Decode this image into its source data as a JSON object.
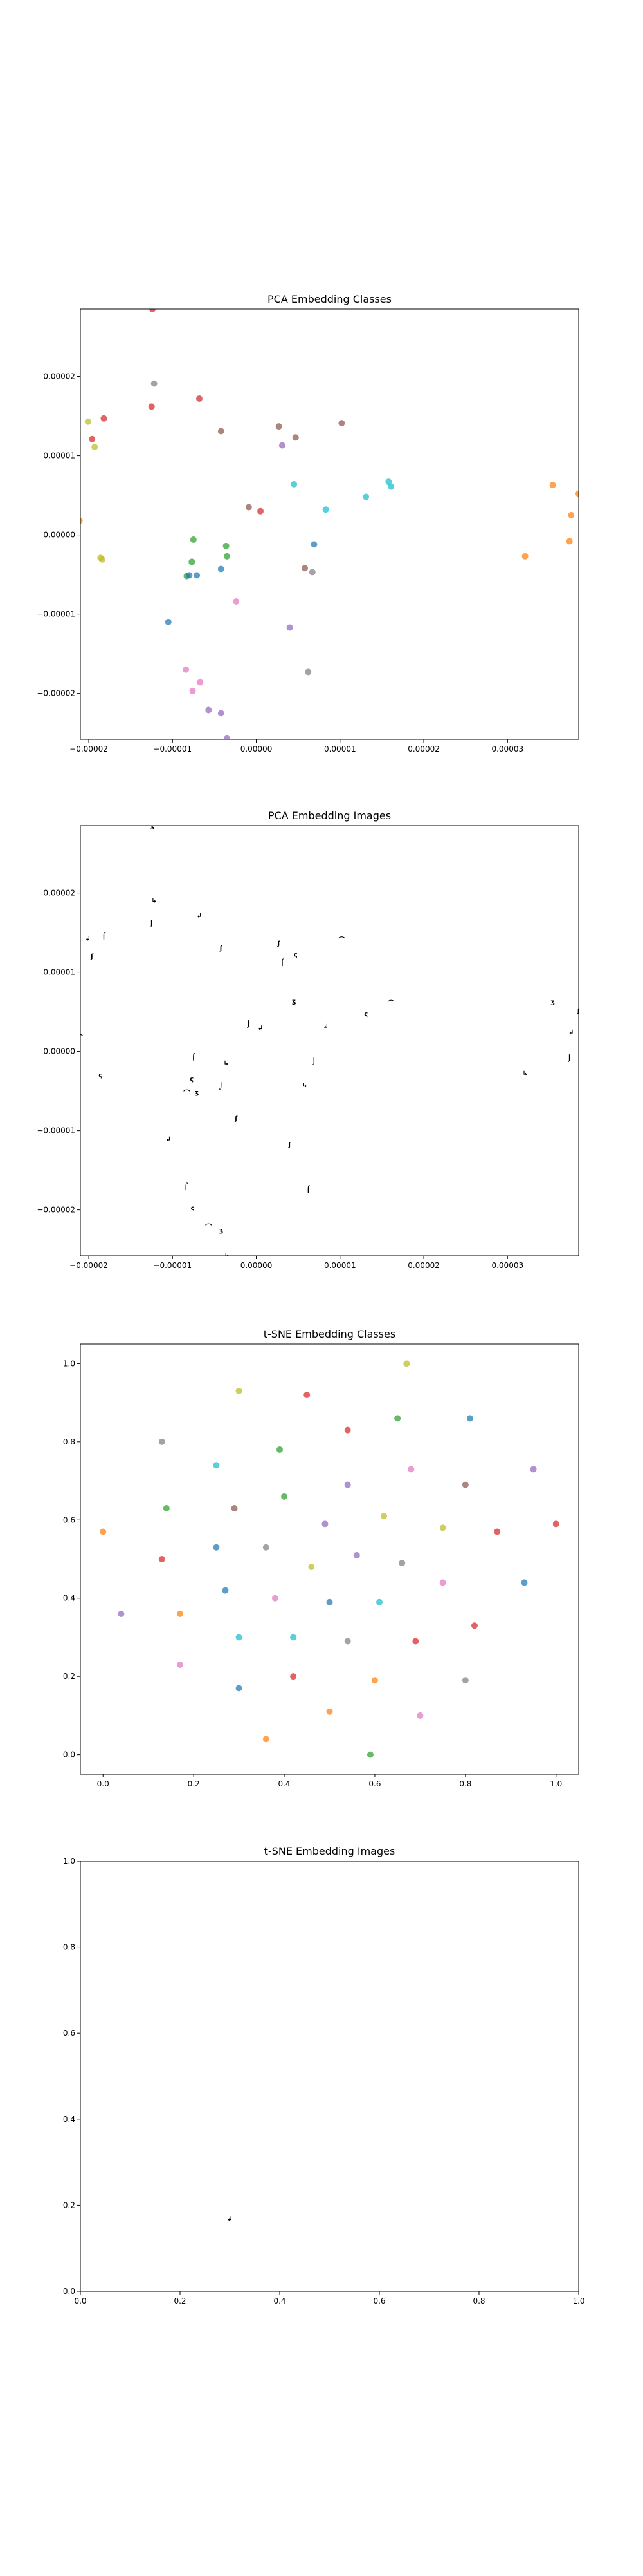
{
  "chart_data": [
    {
      "type": "scatter",
      "title": "PCA Embedding Classes",
      "xlabel": "",
      "ylabel": "",
      "xlim": [
        -2.1e-05,
        3.85e-05
      ],
      "ylim": [
        -2.58e-05,
        2.85e-05
      ],
      "xticks": [
        -2e-05,
        -1e-05,
        0.0,
        1e-05,
        2e-05,
        3e-05
      ],
      "xtick_labels": [
        "−0.00002",
        "−0.00001",
        "0.00000",
        "0.00001",
        "0.00002",
        "0.00003"
      ],
      "yticks": [
        -2e-05,
        -1e-05,
        0.0,
        1e-05,
        2e-05
      ],
      "ytick_labels": [
        "−0.00002",
        "−0.00001",
        "0.00000",
        "0.00001",
        "0.00002"
      ],
      "grid": false,
      "marker": "colored dots by class",
      "points": [
        {
          "x": -2.01e-05,
          "y": 1.43e-05,
          "color": "#bcbd22"
        },
        {
          "x": -1.96e-05,
          "y": 1.21e-05,
          "color": "#d62728"
        },
        {
          "x": -1.93e-05,
          "y": 1.11e-05,
          "color": "#bcbd22"
        },
        {
          "x": -1.82e-05,
          "y": 1.47e-05,
          "color": "#d62728"
        },
        {
          "x": -1.86e-05,
          "y": -2.9e-06,
          "color": "#bcbd22"
        },
        {
          "x": -1.84e-05,
          "y": -3.1e-06,
          "color": "#bcbd22"
        },
        {
          "x": -2.11e-05,
          "y": 1.8e-06,
          "color": "#ff7f0e"
        },
        {
          "x": -1.24e-05,
          "y": 2.85e-05,
          "color": "#d62728"
        },
        {
          "x": -1.22e-05,
          "y": 1.91e-05,
          "color": "#7f7f7f"
        },
        {
          "x": -1.25e-05,
          "y": 1.62e-05,
          "color": "#d62728"
        },
        {
          "x": -6.8e-06,
          "y": 1.72e-05,
          "color": "#d62728"
        },
        {
          "x": -4.2e-06,
          "y": 1.31e-05,
          "color": "#8c564b"
        },
        {
          "x": -7.5e-06,
          "y": -6e-07,
          "color": "#2ca02c"
        },
        {
          "x": -7.7e-06,
          "y": -3.4e-06,
          "color": "#2ca02c"
        },
        {
          "x": -8.3e-06,
          "y": -5.2e-06,
          "color": "#2ca02c"
        },
        {
          "x": -8e-06,
          "y": -5.1e-06,
          "color": "#1f77b4"
        },
        {
          "x": -7.1e-06,
          "y": -5.1e-06,
          "color": "#1f77b4"
        },
        {
          "x": -3.6e-06,
          "y": -1.4e-06,
          "color": "#2ca02c"
        },
        {
          "x": -3.5e-06,
          "y": -2.7e-06,
          "color": "#2ca02c"
        },
        {
          "x": -4.2e-06,
          "y": -4.3e-06,
          "color": "#1f77b4"
        },
        {
          "x": -1.05e-05,
          "y": -1.1e-05,
          "color": "#1f77b4"
        },
        {
          "x": -2.4e-06,
          "y": -8.4e-06,
          "color": "#e377c2"
        },
        {
          "x": -8.4e-06,
          "y": -1.7e-05,
          "color": "#e377c2"
        },
        {
          "x": -6.7e-06,
          "y": -1.86e-05,
          "color": "#e377c2"
        },
        {
          "x": -7.6e-06,
          "y": -1.97e-05,
          "color": "#e377c2"
        },
        {
          "x": -5.7e-06,
          "y": -2.21e-05,
          "color": "#9467bd"
        },
        {
          "x": -4.2e-06,
          "y": -2.25e-05,
          "color": "#9467bd"
        },
        {
          "x": -3.5e-06,
          "y": -2.57e-05,
          "color": "#9467bd"
        },
        {
          "x": -9e-07,
          "y": 3.5e-06,
          "color": "#8c564b"
        },
        {
          "x": 5e-07,
          "y": 3e-06,
          "color": "#d62728"
        },
        {
          "x": 2.7e-06,
          "y": 1.37e-05,
          "color": "#8c564b"
        },
        {
          "x": 3.1e-06,
          "y": 1.13e-05,
          "color": "#9467bd"
        },
        {
          "x": 4.7e-06,
          "y": 1.23e-05,
          "color": "#8c564b"
        },
        {
          "x": 1.02e-05,
          "y": 1.41e-05,
          "color": "#8c564b"
        },
        {
          "x": 4.5e-06,
          "y": 6.4e-06,
          "color": "#17becf"
        },
        {
          "x": 5.8e-06,
          "y": -4.2e-06,
          "color": "#8c564b"
        },
        {
          "x": 6.7e-06,
          "y": -4.7e-06,
          "color": "#7f7f7f"
        },
        {
          "x": 6.9e-06,
          "y": -1.2e-06,
          "color": "#1f77b4"
        },
        {
          "x": 8.3e-06,
          "y": 3.2e-06,
          "color": "#17becf"
        },
        {
          "x": 4e-06,
          "y": -1.17e-05,
          "color": "#9467bd"
        },
        {
          "x": 6.2e-06,
          "y": -1.73e-05,
          "color": "#7f7f7f"
        },
        {
          "x": 1.31e-05,
          "y": 4.8e-06,
          "color": "#17becf"
        },
        {
          "x": 1.58e-05,
          "y": 6.7e-06,
          "color": "#17becf"
        },
        {
          "x": 1.61e-05,
          "y": 6.1e-06,
          "color": "#17becf"
        },
        {
          "x": 3.54e-05,
          "y": 6.3e-06,
          "color": "#ff7f0e"
        },
        {
          "x": 3.21e-05,
          "y": -2.7e-06,
          "color": "#ff7f0e"
        },
        {
          "x": 3.74e-05,
          "y": -8e-07,
          "color": "#ff7f0e"
        },
        {
          "x": 3.76e-05,
          "y": 2.5e-06,
          "color": "#ff7f0e"
        },
        {
          "x": 3.85e-05,
          "y": 5.2e-06,
          "color": "#ff7f0e"
        }
      ]
    },
    {
      "type": "scatter",
      "title": "PCA Embedding Images",
      "xlabel": "",
      "ylabel": "",
      "xlim": [
        -2.1e-05,
        3.85e-05
      ],
      "ylim": [
        -2.58e-05,
        2.85e-05
      ],
      "xticks": [
        -2e-05,
        -1e-05,
        0.0,
        1e-05,
        2e-05,
        3e-05
      ],
      "xtick_labels": [
        "−0.00002",
        "−0.00001",
        "0.00000",
        "0.00001",
        "0.00002",
        "0.00003"
      ],
      "yticks": [
        -2e-05,
        -1e-05,
        0.0,
        1e-05,
        2e-05
      ],
      "ytick_labels": [
        "−0.00002",
        "−0.00001",
        "0.00000",
        "0.00001",
        "0.00002"
      ],
      "grid": false,
      "marker": "small black digit-like glyph images",
      "points": [
        {
          "x": -2.01e-05,
          "y": 1.43e-05
        },
        {
          "x": -1.96e-05,
          "y": 1.21e-05
        },
        {
          "x": -1.82e-05,
          "y": 1.47e-05
        },
        {
          "x": -1.86e-05,
          "y": -2.9e-06
        },
        {
          "x": -2.11e-05,
          "y": 1.8e-06
        },
        {
          "x": -1.24e-05,
          "y": 2.85e-05
        },
        {
          "x": -1.22e-05,
          "y": 1.91e-05
        },
        {
          "x": -1.25e-05,
          "y": 1.62e-05
        },
        {
          "x": -6.8e-06,
          "y": 1.72e-05
        },
        {
          "x": -4.2e-06,
          "y": 1.31e-05
        },
        {
          "x": -7.5e-06,
          "y": -6e-07
        },
        {
          "x": -7.7e-06,
          "y": -3.4e-06
        },
        {
          "x": -8.3e-06,
          "y": -5.2e-06
        },
        {
          "x": -7.1e-06,
          "y": -5.1e-06
        },
        {
          "x": -3.6e-06,
          "y": -1.4e-06
        },
        {
          "x": -4.2e-06,
          "y": -4.3e-06
        },
        {
          "x": -1.05e-05,
          "y": -1.1e-05
        },
        {
          "x": -2.4e-06,
          "y": -8.4e-06
        },
        {
          "x": -8.4e-06,
          "y": -1.7e-05
        },
        {
          "x": -7.6e-06,
          "y": -1.97e-05
        },
        {
          "x": -5.7e-06,
          "y": -2.21e-05
        },
        {
          "x": -4.2e-06,
          "y": -2.25e-05
        },
        {
          "x": -3.5e-06,
          "y": -2.57e-05
        },
        {
          "x": -9e-07,
          "y": 3.5e-06
        },
        {
          "x": 5e-07,
          "y": 3e-06
        },
        {
          "x": 2.7e-06,
          "y": 1.37e-05
        },
        {
          "x": 3.1e-06,
          "y": 1.13e-05
        },
        {
          "x": 4.7e-06,
          "y": 1.23e-05
        },
        {
          "x": 1.02e-05,
          "y": 1.41e-05
        },
        {
          "x": 4.5e-06,
          "y": 6.4e-06
        },
        {
          "x": 5.8e-06,
          "y": -4.2e-06
        },
        {
          "x": 6.9e-06,
          "y": -1.2e-06
        },
        {
          "x": 8.3e-06,
          "y": 3.2e-06
        },
        {
          "x": 4e-06,
          "y": -1.17e-05
        },
        {
          "x": 6.2e-06,
          "y": -1.73e-05
        },
        {
          "x": 1.31e-05,
          "y": 4.8e-06
        },
        {
          "x": 1.61e-05,
          "y": 6.1e-06
        },
        {
          "x": 3.54e-05,
          "y": 6.3e-06
        },
        {
          "x": 3.21e-05,
          "y": -2.7e-06
        },
        {
          "x": 3.74e-05,
          "y": -8e-07
        },
        {
          "x": 3.76e-05,
          "y": 2.5e-06
        },
        {
          "x": 3.85e-05,
          "y": 5.2e-06
        }
      ]
    },
    {
      "type": "scatter",
      "title": "t-SNE Embedding Classes",
      "xlabel": "",
      "ylabel": "",
      "xlim": [
        -0.05,
        1.05
      ],
      "ylim": [
        -0.05,
        1.05
      ],
      "xticks": [
        0.0,
        0.2,
        0.4,
        0.6,
        0.8,
        1.0
      ],
      "xtick_labels": [
        "0.0",
        "0.2",
        "0.4",
        "0.6",
        "0.8",
        "1.0"
      ],
      "yticks": [
        0.0,
        0.2,
        0.4,
        0.6,
        0.8,
        1.0
      ],
      "ytick_labels": [
        "0.0",
        "0.2",
        "0.4",
        "0.6",
        "0.8",
        "1.0"
      ],
      "grid": false,
      "marker": "colored dots by class",
      "points": [
        {
          "x": 0.67,
          "y": 1.0,
          "color": "#bcbd22"
        },
        {
          "x": 0.3,
          "y": 0.93,
          "color": "#bcbd22"
        },
        {
          "x": 0.45,
          "y": 0.92,
          "color": "#d62728"
        },
        {
          "x": 0.65,
          "y": 0.86,
          "color": "#2ca02c"
        },
        {
          "x": 0.81,
          "y": 0.86,
          "color": "#1f77b4"
        },
        {
          "x": 0.54,
          "y": 0.83,
          "color": "#d62728"
        },
        {
          "x": 0.13,
          "y": 0.8,
          "color": "#7f7f7f"
        },
        {
          "x": 0.39,
          "y": 0.78,
          "color": "#2ca02c"
        },
        {
          "x": 0.25,
          "y": 0.74,
          "color": "#17becf"
        },
        {
          "x": 0.68,
          "y": 0.73,
          "color": "#e377c2"
        },
        {
          "x": 0.95,
          "y": 0.73,
          "color": "#9467bd"
        },
        {
          "x": 0.54,
          "y": 0.69,
          "color": "#9467bd"
        },
        {
          "x": 0.8,
          "y": 0.69,
          "color": "#8c564b"
        },
        {
          "x": 0.4,
          "y": 0.66,
          "color": "#2ca02c"
        },
        {
          "x": 0.14,
          "y": 0.63,
          "color": "#2ca02c"
        },
        {
          "x": 0.29,
          "y": 0.63,
          "color": "#8c564b"
        },
        {
          "x": 0.62,
          "y": 0.61,
          "color": "#bcbd22"
        },
        {
          "x": 0.49,
          "y": 0.59,
          "color": "#9467bd"
        },
        {
          "x": 1.0,
          "y": 0.59,
          "color": "#d62728"
        },
        {
          "x": 0.0,
          "y": 0.57,
          "color": "#ff7f0e"
        },
        {
          "x": 0.75,
          "y": 0.58,
          "color": "#bcbd22"
        },
        {
          "x": 0.87,
          "y": 0.57,
          "color": "#d62728"
        },
        {
          "x": 0.25,
          "y": 0.53,
          "color": "#1f77b4"
        },
        {
          "x": 0.36,
          "y": 0.53,
          "color": "#7f7f7f"
        },
        {
          "x": 0.56,
          "y": 0.51,
          "color": "#9467bd"
        },
        {
          "x": 0.13,
          "y": 0.5,
          "color": "#d62728"
        },
        {
          "x": 0.66,
          "y": 0.49,
          "color": "#7f7f7f"
        },
        {
          "x": 0.46,
          "y": 0.48,
          "color": "#bcbd22"
        },
        {
          "x": 0.75,
          "y": 0.44,
          "color": "#e377c2"
        },
        {
          "x": 0.93,
          "y": 0.44,
          "color": "#1f77b4"
        },
        {
          "x": 0.27,
          "y": 0.42,
          "color": "#1f77b4"
        },
        {
          "x": 0.38,
          "y": 0.4,
          "color": "#e377c2"
        },
        {
          "x": 0.5,
          "y": 0.39,
          "color": "#1f77b4"
        },
        {
          "x": 0.61,
          "y": 0.39,
          "color": "#17becf"
        },
        {
          "x": 0.04,
          "y": 0.36,
          "color": "#9467bd"
        },
        {
          "x": 0.17,
          "y": 0.36,
          "color": "#ff7f0e"
        },
        {
          "x": 0.82,
          "y": 0.33,
          "color": "#d62728"
        },
        {
          "x": 0.3,
          "y": 0.3,
          "color": "#17becf"
        },
        {
          "x": 0.42,
          "y": 0.3,
          "color": "#17becf"
        },
        {
          "x": 0.69,
          "y": 0.29,
          "color": "#d62728"
        },
        {
          "x": 0.54,
          "y": 0.29,
          "color": "#7f7f7f"
        },
        {
          "x": 0.17,
          "y": 0.23,
          "color": "#e377c2"
        },
        {
          "x": 0.42,
          "y": 0.2,
          "color": "#d62728"
        },
        {
          "x": 0.6,
          "y": 0.19,
          "color": "#ff7f0e"
        },
        {
          "x": 0.8,
          "y": 0.19,
          "color": "#7f7f7f"
        },
        {
          "x": 0.3,
          "y": 0.17,
          "color": "#1f77b4"
        },
        {
          "x": 0.5,
          "y": 0.11,
          "color": "#ff7f0e"
        },
        {
          "x": 0.7,
          "y": 0.1,
          "color": "#e377c2"
        },
        {
          "x": 0.36,
          "y": 0.04,
          "color": "#ff7f0e"
        },
        {
          "x": 0.59,
          "y": 0.0,
          "color": "#2ca02c"
        }
      ]
    },
    {
      "type": "scatter",
      "title": "t-SNE Embedding Images",
      "xlabel": "",
      "ylabel": "",
      "xlim": [
        0.0,
        1.0
      ],
      "ylim": [
        0.0,
        1.0
      ],
      "xticks": [
        0.0,
        0.2,
        0.4,
        0.6,
        0.8,
        1.0
      ],
      "xtick_labels": [
        "0.0",
        "0.2",
        "0.4",
        "0.6",
        "0.8",
        "1.0"
      ],
      "yticks": [
        0.0,
        0.2,
        0.4,
        0.6,
        0.8,
        1.0
      ],
      "ytick_labels": [
        "0.0",
        "0.2",
        "0.4",
        "0.6",
        "0.8",
        "1.0"
      ],
      "grid": false,
      "marker": "single small black digit-like glyph image",
      "points": [
        {
          "x": 0.3,
          "y": 0.17
        }
      ]
    }
  ]
}
